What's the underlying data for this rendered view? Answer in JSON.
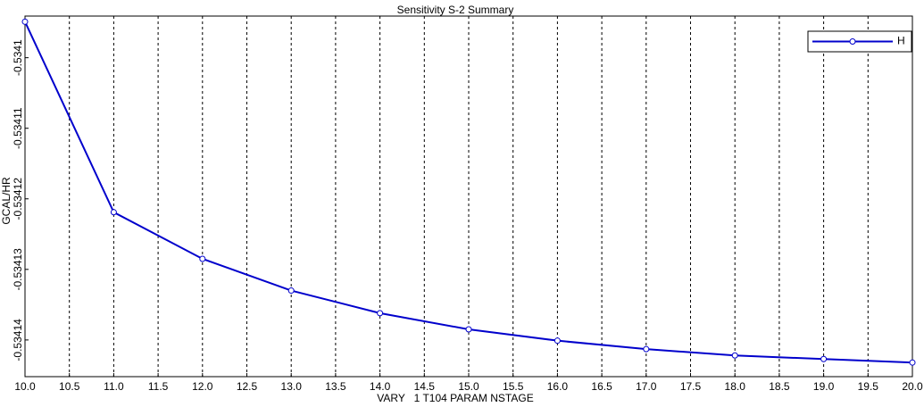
{
  "chart_data": {
    "type": "line",
    "title": "Sensitivity S-2 Summary",
    "x_label": "VARY   1 T104 PARAM NSTAGE",
    "y_label": "GCAL/HR",
    "x": [
      10,
      11,
      12,
      13,
      14,
      15,
      16,
      17,
      18,
      19,
      20
    ],
    "series": [
      {
        "name": "H",
        "color": "#0000cc",
        "values": [
          -0.5340949,
          -0.5341219,
          -0.5341285,
          -0.534133,
          -0.5341362,
          -0.5341385,
          -0.5341401,
          -0.5341413,
          -0.5341422,
          -0.5341427,
          -0.5341432
        ]
      }
    ],
    "xlim": [
      10,
      20
    ],
    "xticks": [
      {
        "value": 10,
        "label": "10.0"
      },
      {
        "value": 10.5,
        "label": "10.5"
      },
      {
        "value": 11,
        "label": "11.0"
      },
      {
        "value": 11.5,
        "label": "11.5"
      },
      {
        "value": 12,
        "label": "12.0"
      },
      {
        "value": 12.5,
        "label": "12.5"
      },
      {
        "value": 13,
        "label": "13.0"
      },
      {
        "value": 13.5,
        "label": "13.5"
      },
      {
        "value": 14,
        "label": "14.0"
      },
      {
        "value": 14.5,
        "label": "14.5"
      },
      {
        "value": 15,
        "label": "15.0"
      },
      {
        "value": 15.5,
        "label": "15.5"
      },
      {
        "value": 16,
        "label": "16.0"
      },
      {
        "value": 16.5,
        "label": "16.5"
      },
      {
        "value": 17,
        "label": "17.0"
      },
      {
        "value": 17.5,
        "label": "17.5"
      },
      {
        "value": 18,
        "label": "18.0"
      },
      {
        "value": 18.5,
        "label": "18.5"
      },
      {
        "value": 19,
        "label": "19.0"
      },
      {
        "value": 19.5,
        "label": "19.5"
      },
      {
        "value": 20,
        "label": "20.0"
      }
    ],
    "ylim": [
      -0.5341452,
      -0.5340941
    ],
    "yticks": [
      -0.5341,
      -0.53411,
      -0.53412,
      -0.53413,
      -0.53414
    ],
    "grid": "x",
    "legend": "upper right"
  }
}
